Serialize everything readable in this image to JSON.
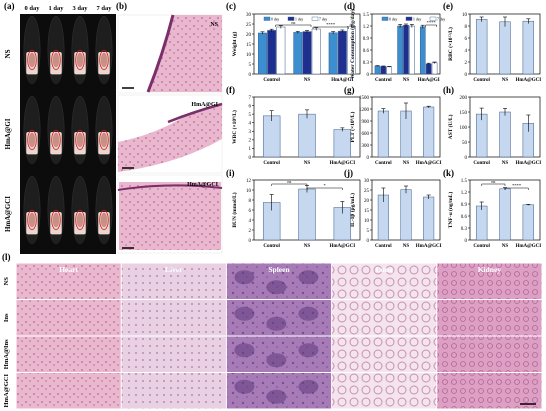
{
  "panel_labels": {
    "a": "(a)",
    "b": "(b)",
    "c": "(c)",
    "d": "(d)",
    "e": "(e)",
    "f": "(f)",
    "g": "(g)",
    "h": "(h)",
    "i": "(i)",
    "j": "(j)",
    "k": "(k)",
    "l": "(l)"
  },
  "mice_photos": {
    "time_labels": [
      "0 day",
      "1 day",
      "3 day",
      "7 day"
    ],
    "group_labels": [
      "NS",
      "HmA@GI",
      "HmA@GCI"
    ]
  },
  "histology_b": {
    "labels": [
      "NS",
      "HmA@GI",
      "HmA@GCI"
    ]
  },
  "tissue_grid": {
    "columns": [
      "Heart",
      "Liver",
      "Spleen",
      "Lung",
      "Kidney"
    ],
    "rows": [
      "NS",
      "Ins",
      "HmA@Ins",
      "HmA@GCI"
    ]
  },
  "colors": {
    "bar_fill": "#c5d8ef",
    "bar_stroke": "#3a5a8a",
    "series_day0": "#3b8fd0",
    "series_day1": "#1f2f8f",
    "series_day7": "#ffffff"
  },
  "chart_data": [
    {
      "id": "c",
      "type": "bar",
      "categories": [
        "Control",
        "NS",
        "HmA@GI"
      ],
      "ylabel": "Weight (g)",
      "ylim": [
        0,
        30
      ],
      "yticks": [
        0,
        5,
        10,
        15,
        20,
        25,
        30
      ],
      "series": [
        {
          "name": "0 day",
          "values": [
            20.5,
            20.8,
            20.6
          ],
          "err": [
            0.6,
            0.5,
            0.6
          ]
        },
        {
          "name": "1 day",
          "values": [
            21.8,
            21.2,
            21.4
          ],
          "err": [
            0.6,
            0.6,
            0.6
          ]
        },
        {
          "name": "7 day",
          "values": [
            23.5,
            22.5,
            23.8
          ],
          "err": [
            0.7,
            0.7,
            0.7
          ]
        }
      ],
      "annotations": [
        "ns",
        "****"
      ]
    },
    {
      "id": "d",
      "type": "bar",
      "categories": [
        "Control",
        "NS",
        "HmA@GI"
      ],
      "ylabel": "Water Consumption (g/g/day)",
      "ylim": [
        0,
        1.5
      ],
      "yticks": [
        0.0,
        0.3,
        0.6,
        0.9,
        1.2,
        1.5
      ],
      "series": [
        {
          "name": "0 day",
          "values": [
            0.2,
            1.2,
            1.18
          ],
          "err": [
            0.01,
            0.04,
            0.04
          ]
        },
        {
          "name": "1 day",
          "values": [
            0.19,
            1.22,
            0.25
          ],
          "err": [
            0.01,
            0.03,
            0.02
          ]
        },
        {
          "name": "7 day",
          "values": [
            0.18,
            1.2,
            0.28
          ],
          "err": [
            0.01,
            0.04,
            0.02
          ]
        }
      ],
      "annotations": [
        "****"
      ]
    },
    {
      "id": "e",
      "type": "bar",
      "categories": [
        "Control",
        "NS",
        "HmA@GCI"
      ],
      "ylabel": "RBC (×10¹²/L)",
      "ylim": [
        0,
        10
      ],
      "yticks": [
        0,
        2,
        4,
        6,
        8,
        10
      ],
      "series": [
        {
          "name": "",
          "values": [
            9.1,
            8.7,
            8.8
          ],
          "err": [
            0.4,
            0.8,
            0.4
          ]
        }
      ]
    },
    {
      "id": "f",
      "type": "bar",
      "categories": [
        "Control",
        "NS",
        "HmA@GCI"
      ],
      "ylabel": "WBC (×10⁹/L)",
      "ylim": [
        0,
        7
      ],
      "yticks": [
        0,
        1,
        2,
        3,
        4,
        5,
        6,
        7
      ],
      "series": [
        {
          "name": "",
          "values": [
            4.8,
            5.0,
            3.2
          ],
          "err": [
            0.6,
            0.5,
            0.2
          ]
        }
      ]
    },
    {
      "id": "g",
      "type": "bar",
      "categories": [
        "Control",
        "NS",
        "HmA@GCI"
      ],
      "ylabel": "PLT (×10⁹/L)",
      "ylim": [
        0,
        1500
      ],
      "yticks": [
        0,
        300,
        600,
        900,
        1200,
        1500
      ],
      "series": [
        {
          "name": "",
          "values": [
            1150,
            1150,
            1250
          ],
          "err": [
            60,
            200,
            20
          ]
        }
      ]
    },
    {
      "id": "h",
      "type": "bar",
      "categories": [
        "Control",
        "NS",
        "HmA@GCI"
      ],
      "ylabel": "AST (U/L)",
      "ylim": [
        0,
        200
      ],
      "yticks": [
        0,
        50,
        100,
        150,
        200
      ],
      "series": [
        {
          "name": "",
          "values": [
            143,
            150,
            112
          ],
          "err": [
            20,
            12,
            28
          ]
        }
      ]
    },
    {
      "id": "i",
      "type": "bar",
      "categories": [
        "Control",
        "NS",
        "HmA@GCI"
      ],
      "ylabel": "BUN (mmol/L)",
      "ylim": [
        0,
        12
      ],
      "yticks": [
        0,
        2,
        4,
        6,
        8,
        10,
        12
      ],
      "series": [
        {
          "name": "",
          "values": [
            7.5,
            10.2,
            6.5
          ],
          "err": [
            1.6,
            0.7,
            1.2
          ]
        }
      ],
      "annotations": [
        "ns",
        "*"
      ]
    },
    {
      "id": "j",
      "type": "bar",
      "categories": [
        "Control",
        "NS",
        "HmA@GCI"
      ],
      "ylabel": "IL-1β (pg/mL)",
      "ylim": [
        0,
        30
      ],
      "yticks": [
        0,
        5,
        10,
        15,
        20,
        25,
        30
      ],
      "series": [
        {
          "name": "",
          "values": [
            22.5,
            25.2,
            21.5
          ],
          "err": [
            3.5,
            1.8,
            1.0
          ]
        }
      ]
    },
    {
      "id": "k",
      "type": "bar",
      "categories": [
        "Control",
        "NS",
        "HmA@GCI"
      ],
      "ylabel": "TNF-α (ng/mL)",
      "ylim": [
        0,
        1.5
      ],
      "yticks": [
        0.0,
        0.3,
        0.6,
        0.9,
        1.2,
        1.5
      ],
      "series": [
        {
          "name": "",
          "values": [
            0.85,
            1.28,
            0.88
          ],
          "err": [
            0.1,
            0.03,
            0.01
          ]
        }
      ],
      "annotations": [
        "ns",
        "****"
      ]
    }
  ]
}
